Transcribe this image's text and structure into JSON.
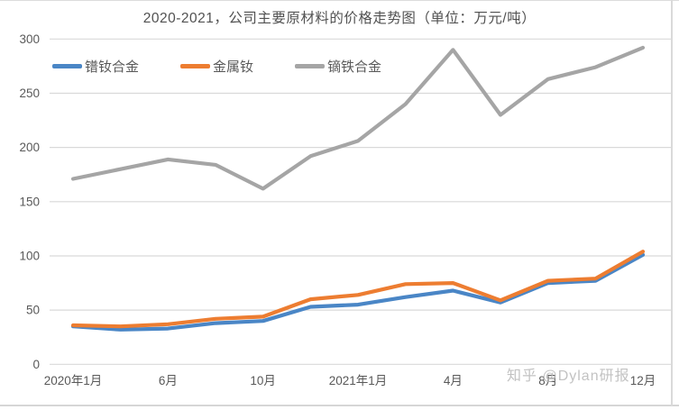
{
  "chart_data": {
    "type": "line",
    "title": "2020-2021，公司主要原材料的价格走势图（单位：万元/吨）",
    "categories": [
      "2020年1月",
      "",
      "6月",
      "",
      "10月",
      "",
      "2021年1月",
      "",
      "4月",
      "",
      "8月",
      "",
      "12月"
    ],
    "series": [
      {
        "name": "镨钕合金",
        "color": "#4A86C6",
        "values": [
          35,
          32,
          33,
          38,
          40,
          53,
          55,
          62,
          68,
          57,
          75,
          77,
          101
        ]
      },
      {
        "name": "金属钕",
        "color": "#ED7D31",
        "values": [
          36,
          35,
          37,
          42,
          44,
          60,
          64,
          74,
          75,
          59,
          77,
          79,
          104
        ]
      },
      {
        "name": "镝铁合金",
        "color": "#A5A5A5",
        "values": [
          171,
          180,
          189,
          184,
          162,
          192,
          206,
          240,
          290,
          230,
          263,
          274,
          292
        ]
      }
    ],
    "y_axis": {
      "min": 0,
      "max": 300,
      "step": 50
    },
    "x_tick_labels_visible": [
      "2020年1月",
      "6月",
      "10月",
      "2021年1月",
      "4月",
      "8月",
      "12月"
    ],
    "grid": true,
    "legend_position": "top-left",
    "unit": "万元/吨"
  },
  "watermark": {
    "text": "知乎 @Dylan研报"
  },
  "colors": {
    "grid": "#d9d9d9",
    "axis_text": "#595959",
    "title_text": "#515151",
    "watermark_text": "#bcbcbc",
    "background": "#ffffff"
  }
}
